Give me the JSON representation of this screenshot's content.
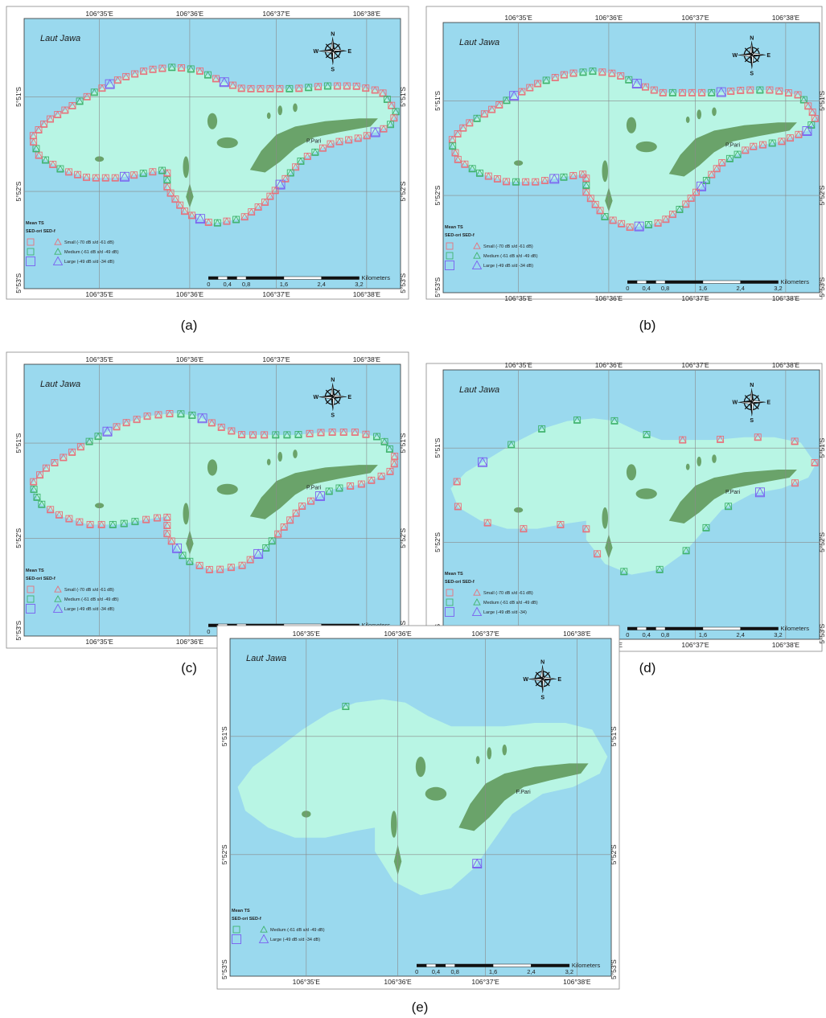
{
  "colors": {
    "sea": "#9ad9ee",
    "reef": "#b8f5e4",
    "land": "#6aa36a",
    "grid": "#8a8a8a",
    "small": "#e8707a",
    "medium": "#3fb36d",
    "large": "#7a5ef0"
  },
  "map_labels": {
    "sea_name": "Laut Jawa",
    "island_name": "P.Pari",
    "compass": [
      "N",
      "E",
      "S",
      "W"
    ],
    "lon_ticks": [
      "106°35'E",
      "106°36'E",
      "106°37'E",
      "106°38'E"
    ],
    "lat_ticks": [
      "5°51'S",
      "5°52'S",
      "5°53'S"
    ],
    "scale_unit": "Kilometers",
    "scale_ticks": [
      "0",
      "0,4",
      "0,8",
      "1,6",
      "2,4",
      "3,2"
    ]
  },
  "legend": {
    "title": "Mean TS",
    "columns": "SED-ori  SED-f",
    "small": "Small (-70 dB s/d -61 dB)",
    "medium": "Medium (-61 dB s/d -49 dB)",
    "large": "Large (-49 dB s/d -34 dB)",
    "large_d": "Large (-49 dB s/d -34)"
  },
  "panels": [
    {
      "id": "a",
      "caption": "(a)",
      "legend_classes": [
        "small",
        "medium",
        "large"
      ],
      "small_n": 70,
      "medium_n": 22,
      "large_n": 6
    },
    {
      "id": "b",
      "caption": "(b)",
      "legend_classes": [
        "small",
        "medium",
        "large"
      ],
      "small_n": 66,
      "medium_n": 24,
      "large_n": 7
    },
    {
      "id": "c",
      "caption": "(c)",
      "legend_classes": [
        "small",
        "medium",
        "large"
      ],
      "small_n": 56,
      "medium_n": 22,
      "large_n": 5
    },
    {
      "id": "d",
      "caption": "(d)",
      "legend_classes": [
        "small",
        "medium",
        "large"
      ],
      "small_n": 13,
      "medium_n": 10,
      "large_n": 2
    },
    {
      "id": "e",
      "caption": "(e)",
      "legend_classes": [
        "medium",
        "large"
      ],
      "small_n": 0,
      "medium_n": 1,
      "large_n": 1
    }
  ]
}
